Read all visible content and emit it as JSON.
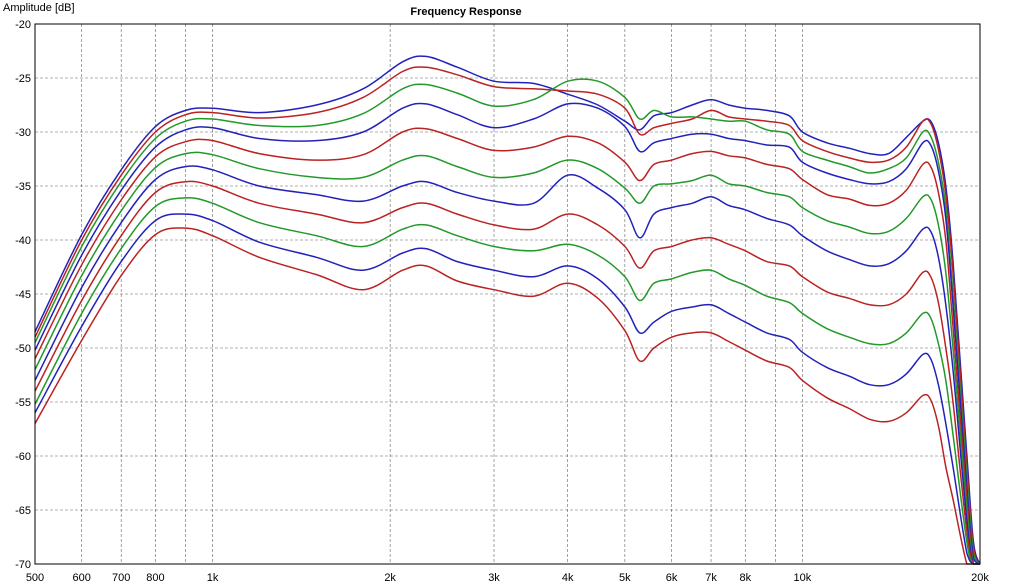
{
  "chart_data": {
    "type": "line",
    "title": "Frequency Response",
    "ylabel": "Amplitude [dB]",
    "xlabel": "",
    "xscale": "log",
    "xlim": [
      500,
      20000
    ],
    "ylim": [
      -70,
      -20
    ],
    "grid": true,
    "legend": "none",
    "x_ticks": [
      {
        "value": 500,
        "label": "500"
      },
      {
        "value": 600,
        "label": "600"
      },
      {
        "value": 700,
        "label": "700"
      },
      {
        "value": 800,
        "label": "800"
      },
      {
        "value": 1000,
        "label": "1k"
      },
      {
        "value": 2000,
        "label": "2k"
      },
      {
        "value": 3000,
        "label": "3k"
      },
      {
        "value": 4000,
        "label": "4k"
      },
      {
        "value": 5000,
        "label": "5k"
      },
      {
        "value": 6000,
        "label": "6k"
      },
      {
        "value": 7000,
        "label": "7k"
      },
      {
        "value": 8000,
        "label": "8k"
      },
      {
        "value": 10000,
        "label": "10k"
      },
      {
        "value": 20000,
        "label": "20k"
      }
    ],
    "x_minor_grid": [
      900,
      9000
    ],
    "y_ticks": [
      {
        "value": -20,
        "label": "-20"
      },
      {
        "value": -25,
        "label": "-25"
      },
      {
        "value": -30,
        "label": "-30"
      },
      {
        "value": -35,
        "label": "-35"
      },
      {
        "value": -40,
        "label": "-40"
      },
      {
        "value": -45,
        "label": "-45"
      },
      {
        "value": -50,
        "label": "-50"
      },
      {
        "value": -55,
        "label": "-55"
      },
      {
        "value": -60,
        "label": "-60"
      },
      {
        "value": -65,
        "label": "-65"
      },
      {
        "value": -70,
        "label": "-70"
      }
    ],
    "x": [
      500,
      600,
      700,
      800,
      900,
      1000,
      1200,
      1500,
      1800,
      2100,
      2300,
      2600,
      3000,
      3500,
      4000,
      4500,
      5000,
      5300,
      5600,
      6000,
      6500,
      7000,
      7500,
      8000,
      8700,
      9500,
      10000,
      11000,
      12000,
      13000,
      14000,
      15000,
      16000,
      16500,
      17000,
      17500,
      18000,
      19000,
      19500,
      20000
    ],
    "series": [
      {
        "color": "#2222bb",
        "values": [
          -48.5,
          -39.5,
          -33.5,
          -29.5,
          -28.0,
          -27.8,
          -28.2,
          -27.5,
          -26.0,
          -23.5,
          -23.0,
          -24.0,
          -25.3,
          -25.5,
          -26.5,
          -27.5,
          -29.0,
          -29.8,
          -28.5,
          -28.2,
          -27.5,
          -27.0,
          -27.5,
          -27.8,
          -28.0,
          -28.5,
          -30.0,
          -31.0,
          -31.5,
          -32.0,
          -32.0,
          -30.5,
          -29.0,
          -29.0,
          -31.0,
          -35.0,
          -42.0,
          -60.0,
          -68.0,
          -70.0
        ]
      },
      {
        "color": "#bb2222",
        "values": [
          -49.0,
          -40.0,
          -34.0,
          -30.0,
          -28.4,
          -28.2,
          -28.7,
          -28.2,
          -26.8,
          -24.4,
          -24.0,
          -24.7,
          -25.8,
          -26.0,
          -26.2,
          -26.5,
          -27.8,
          -30.2,
          -29.6,
          -29.2,
          -28.8,
          -28.0,
          -28.6,
          -28.8,
          -29.0,
          -29.4,
          -30.8,
          -31.8,
          -32.4,
          -32.8,
          -32.6,
          -31.4,
          -29.0,
          -29.2,
          -31.6,
          -35.8,
          -43.0,
          -61.0,
          -68.5,
          -70.0
        ]
      },
      {
        "color": "#22992a",
        "values": [
          -49.5,
          -40.6,
          -34.6,
          -30.6,
          -29.0,
          -28.8,
          -29.4,
          -29.4,
          -28.3,
          -26.0,
          -25.6,
          -26.4,
          -27.6,
          -27.0,
          -25.3,
          -25.3,
          -26.8,
          -28.8,
          -28.0,
          -28.6,
          -28.6,
          -28.8,
          -29.0,
          -29.0,
          -29.8,
          -30.2,
          -31.8,
          -32.6,
          -33.2,
          -33.8,
          -33.4,
          -32.4,
          -30.0,
          -30.4,
          -32.8,
          -37.0,
          -45.0,
          -62.0,
          -69.0,
          -70.0
        ]
      },
      {
        "color": "#2222bb",
        "values": [
          -50.2,
          -41.4,
          -35.4,
          -31.4,
          -29.8,
          -29.6,
          -30.6,
          -30.8,
          -30.0,
          -27.8,
          -27.4,
          -28.4,
          -29.6,
          -28.8,
          -27.4,
          -27.8,
          -29.5,
          -31.8,
          -31.0,
          -30.6,
          -30.2,
          -30.2,
          -30.6,
          -30.8,
          -31.2,
          -31.4,
          -32.8,
          -33.8,
          -34.4,
          -34.8,
          -34.6,
          -33.4,
          -31.0,
          -31.2,
          -33.6,
          -38.0,
          -46.0,
          -63.0,
          -69.5,
          -70.0
        ]
      },
      {
        "color": "#bb2222",
        "values": [
          -51.0,
          -42.3,
          -36.3,
          -32.3,
          -30.9,
          -30.8,
          -32.0,
          -32.6,
          -32.1,
          -30.0,
          -29.7,
          -30.6,
          -31.7,
          -31.4,
          -30.4,
          -31.0,
          -32.8,
          -34.5,
          -33.0,
          -32.6,
          -32.0,
          -31.8,
          -32.2,
          -32.4,
          -33.0,
          -33.4,
          -34.4,
          -35.8,
          -36.2,
          -36.8,
          -36.6,
          -35.4,
          -33.0,
          -33.2,
          -35.6,
          -40.0,
          -48.0,
          -64.0,
          -70.0,
          -70.0
        ]
      },
      {
        "color": "#22992a",
        "values": [
          -52.0,
          -43.3,
          -37.3,
          -33.3,
          -32.0,
          -32.1,
          -33.4,
          -34.2,
          -34.2,
          -32.6,
          -32.2,
          -33.2,
          -34.2,
          -33.8,
          -32.6,
          -33.4,
          -35.2,
          -36.6,
          -35.0,
          -34.8,
          -34.5,
          -34.0,
          -34.8,
          -35.0,
          -35.6,
          -36.0,
          -37.0,
          -38.2,
          -38.8,
          -39.4,
          -39.2,
          -38.0,
          -36.0,
          -36.2,
          -38.6,
          -43.0,
          -50.0,
          -65.0,
          -70.0,
          -70.0
        ]
      },
      {
        "color": "#2222bb",
        "values": [
          -53.0,
          -44.4,
          -38.4,
          -34.4,
          -33.2,
          -33.5,
          -35.0,
          -35.8,
          -36.4,
          -35.0,
          -34.6,
          -35.6,
          -36.4,
          -36.6,
          -34.0,
          -35.2,
          -37.2,
          -39.8,
          -37.6,
          -37.0,
          -36.6,
          -36.0,
          -36.8,
          -37.2,
          -38.0,
          -38.6,
          -39.6,
          -41.0,
          -41.8,
          -42.4,
          -42.2,
          -41.0,
          -39.0,
          -39.2,
          -41.6,
          -46.0,
          -52.0,
          -66.0,
          -70.0,
          -70.0
        ]
      },
      {
        "color": "#bb2222",
        "values": [
          -54.0,
          -45.6,
          -39.6,
          -35.6,
          -34.6,
          -35.0,
          -36.6,
          -37.6,
          -38.4,
          -37.0,
          -36.6,
          -37.6,
          -38.6,
          -39.0,
          -37.6,
          -38.6,
          -40.6,
          -42.6,
          -41.0,
          -40.6,
          -40.0,
          -39.8,
          -40.4,
          -41.0,
          -42.0,
          -42.4,
          -43.4,
          -44.8,
          -45.4,
          -46.0,
          -46.0,
          -45.0,
          -43.0,
          -43.4,
          -45.8,
          -50.0,
          -55.0,
          -67.0,
          -70.0,
          -70.0
        ]
      },
      {
        "color": "#22992a",
        "values": [
          -55.2,
          -46.8,
          -40.8,
          -36.9,
          -36.1,
          -36.6,
          -38.4,
          -39.6,
          -40.6,
          -39.0,
          -38.6,
          -39.6,
          -40.6,
          -41.0,
          -40.4,
          -41.4,
          -43.4,
          -45.6,
          -44.0,
          -43.6,
          -43.0,
          -42.8,
          -43.6,
          -44.2,
          -45.2,
          -45.8,
          -46.8,
          -48.2,
          -49.0,
          -49.6,
          -49.6,
          -48.6,
          -46.8,
          -47.2,
          -49.6,
          -53.0,
          -58.0,
          -68.0,
          -70.0,
          -70.0
        ]
      },
      {
        "color": "#2222bb",
        "values": [
          -56.0,
          -48.0,
          -42.0,
          -38.2,
          -37.6,
          -38.2,
          -40.2,
          -41.6,
          -42.8,
          -41.2,
          -40.8,
          -42.0,
          -42.8,
          -43.4,
          -42.4,
          -43.6,
          -46.2,
          -48.6,
          -47.6,
          -46.6,
          -46.2,
          -46.0,
          -46.8,
          -47.6,
          -48.6,
          -49.2,
          -50.4,
          -51.8,
          -52.6,
          -53.4,
          -53.4,
          -52.4,
          -50.6,
          -51.0,
          -53.4,
          -57.0,
          -61.0,
          -69.0,
          -70.0,
          -70.0
        ]
      },
      {
        "color": "#bb2222",
        "values": [
          -57.0,
          -49.3,
          -43.3,
          -39.5,
          -38.9,
          -39.6,
          -41.6,
          -43.2,
          -44.6,
          -42.8,
          -42.4,
          -43.8,
          -44.6,
          -45.2,
          -44.0,
          -45.4,
          -48.4,
          -51.2,
          -50.0,
          -49.0,
          -48.6,
          -48.6,
          -49.4,
          -50.2,
          -51.2,
          -51.8,
          -53.0,
          -54.6,
          -55.6,
          -56.6,
          -56.8,
          -56.0,
          -54.4,
          -54.8,
          -57.2,
          -61.0,
          -64.0,
          -70.0,
          -70.0,
          -70.0
        ]
      }
    ]
  }
}
